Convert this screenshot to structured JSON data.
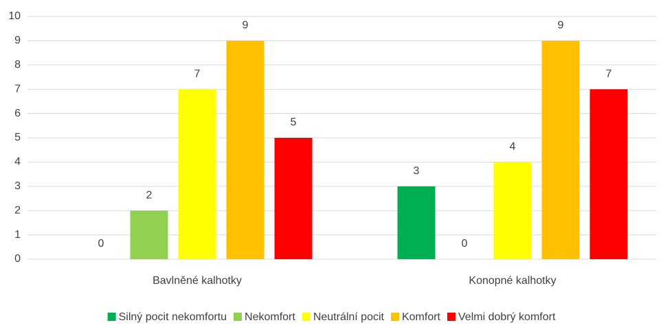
{
  "chart_data": {
    "type": "bar",
    "categories": [
      "Bavlněné kalhotky",
      "Konopné kalhotky"
    ],
    "series": [
      {
        "name": "Silný pocit nekomfortu",
        "color": "#00b050",
        "values": [
          0,
          3
        ]
      },
      {
        "name": "Nekomfort",
        "color": "#92d050",
        "values": [
          2,
          0
        ]
      },
      {
        "name": "Neutrální pocit",
        "color": "#ffff00",
        "values": [
          7,
          4
        ]
      },
      {
        "name": "Komfort",
        "color": "#ffc000",
        "values": [
          9,
          9
        ]
      },
      {
        "name": "Velmi dobrý komfort",
        "color": "#ff0000",
        "values": [
          5,
          7
        ]
      }
    ],
    "ylim": [
      0,
      10
    ],
    "yticks": [
      0,
      1,
      2,
      3,
      4,
      5,
      6,
      7,
      8,
      9,
      10
    ],
    "grid": true,
    "legend": "bottom"
  }
}
